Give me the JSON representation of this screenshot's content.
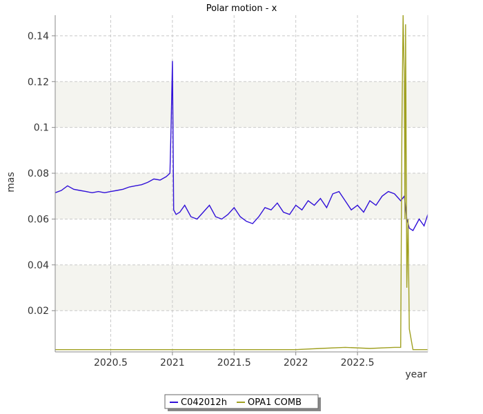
{
  "chart_data": {
    "type": "line",
    "title": "Polar motion - x",
    "xlabel": "year",
    "ylabel": "mas",
    "xlim": [
      2020.05,
      2023.07
    ],
    "ylim": [
      0.002,
      0.149
    ],
    "x_ticks": [
      {
        "value": 2020.5,
        "label": "2020.5"
      },
      {
        "value": 2021.0,
        "label": "2021"
      },
      {
        "value": 2021.5,
        "label": "2021.5"
      },
      {
        "value": 2022.0,
        "label": "2022"
      },
      {
        "value": 2022.5,
        "label": "2022.5"
      }
    ],
    "y_ticks": [
      {
        "value": 0.02,
        "label": "0.02"
      },
      {
        "value": 0.04,
        "label": "0.04"
      },
      {
        "value": 0.06,
        "label": "0.06"
      },
      {
        "value": 0.08,
        "label": "0.08"
      },
      {
        "value": 0.1,
        "label": "0.1"
      },
      {
        "value": 0.12,
        "label": "0.12"
      },
      {
        "value": 0.14,
        "label": "0.14"
      }
    ],
    "grid": true,
    "legend_position": "bottom-center",
    "series": [
      {
        "name": "C042012h",
        "color": "#3010d8",
        "x": [
          2020.05,
          2020.1,
          2020.15,
          2020.2,
          2020.25,
          2020.3,
          2020.35,
          2020.4,
          2020.45,
          2020.5,
          2020.55,
          2020.6,
          2020.65,
          2020.7,
          2020.75,
          2020.8,
          2020.85,
          2020.9,
          2020.95,
          2020.98,
          2020.99,
          2021.0,
          2021.01,
          2021.03,
          2021.06,
          2021.1,
          2021.15,
          2021.2,
          2021.25,
          2021.3,
          2021.35,
          2021.4,
          2021.45,
          2021.5,
          2021.55,
          2021.6,
          2021.65,
          2021.7,
          2021.75,
          2021.8,
          2021.85,
          2021.9,
          2021.95,
          2022.0,
          2022.05,
          2022.1,
          2022.15,
          2022.2,
          2022.25,
          2022.3,
          2022.35,
          2022.4,
          2022.45,
          2022.5,
          2022.55,
          2022.6,
          2022.65,
          2022.7,
          2022.75,
          2022.8,
          2022.85,
          2022.88,
          2022.9,
          2022.92,
          2022.95,
          2023.0,
          2023.04,
          2023.07
        ],
        "values": [
          0.0715,
          0.0725,
          0.0745,
          0.073,
          0.0725,
          0.072,
          0.0715,
          0.072,
          0.0715,
          0.072,
          0.0725,
          0.073,
          0.074,
          0.0745,
          0.075,
          0.076,
          0.0775,
          0.077,
          0.0785,
          0.08,
          0.102,
          0.129,
          0.064,
          0.062,
          0.063,
          0.066,
          0.061,
          0.06,
          0.063,
          0.066,
          0.061,
          0.06,
          0.062,
          0.065,
          0.061,
          0.059,
          0.058,
          0.061,
          0.065,
          0.064,
          0.067,
          0.063,
          0.062,
          0.066,
          0.064,
          0.068,
          0.066,
          0.069,
          0.065,
          0.071,
          0.072,
          0.068,
          0.064,
          0.066,
          0.063,
          0.068,
          0.066,
          0.07,
          0.072,
          0.071,
          0.068,
          0.07,
          0.06,
          0.056,
          0.055,
          0.06,
          0.057,
          0.062
        ]
      },
      {
        "name": "OPA1 COMB",
        "color": "#a0a020",
        "x": [
          2020.05,
          2020.3,
          2020.4,
          2020.5,
          2020.8,
          2021.0,
          2021.2,
          2021.5,
          2021.8,
          2022.0,
          2022.2,
          2022.4,
          2022.6,
          2022.8,
          2022.85,
          2022.86,
          2022.87,
          2022.88,
          2022.885,
          2022.89,
          2022.9,
          2022.91,
          2022.92,
          2022.95,
          2023.0,
          2023.07
        ],
        "values": [
          0.003,
          0.003,
          0.003,
          0.003,
          0.003,
          0.003,
          0.003,
          0.003,
          0.003,
          0.003,
          0.0035,
          0.004,
          0.0035,
          0.004,
          0.004,
          0.1,
          0.149,
          0.12,
          0.06,
          0.145,
          0.03,
          0.06,
          0.012,
          0.003,
          0.003,
          0.003
        ]
      }
    ]
  }
}
